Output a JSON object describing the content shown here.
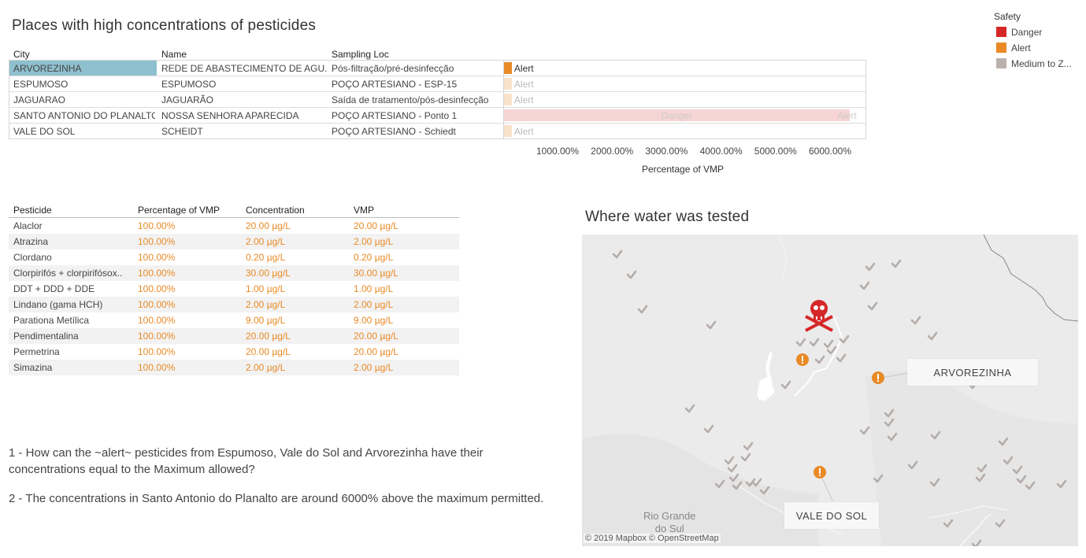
{
  "top": {
    "title": "Places with high concentrations of pesticides",
    "headers": {
      "city": "City",
      "name": "Name",
      "loc": "Sampling Loc"
    },
    "rows": [
      {
        "city": "ARVOREZINHA",
        "name": "REDE DE ABASTECIMENTO DE AGU..",
        "loc": "Pós-filtração/pré-desinfecção",
        "label": "Alert",
        "value": 100,
        "status": "alert",
        "selected": true
      },
      {
        "city": "ESPUMOSO",
        "name": "ESPUMOSO",
        "loc": "POÇO ARTESIANO - ESP-15",
        "label": "Alert",
        "value": 100,
        "status": "alert-faded"
      },
      {
        "city": "JAGUARAO",
        "name": "JAGUARÃO",
        "loc": "Saída de tratamento/pós-desinfecção",
        "label": "Alert",
        "value": 100,
        "status": "alert-faded"
      },
      {
        "city": "SANTO ANTONIO DO PLANALTO",
        "name": "NOSSA SENHORA APARECIDA",
        "loc": "POÇO ARTESIANO - Ponto 1",
        "label": "Danger",
        "label2": "Alert",
        "value": 6300,
        "status": "danger-faded"
      },
      {
        "city": "VALE DO SOL",
        "name": "SCHEIDT",
        "loc": "POÇO ARTESIANO - Schiedt",
        "label": "Alert",
        "value": 100,
        "status": "alert-faded"
      }
    ],
    "axis": {
      "ticks": [
        "1000.00%",
        "2000.00%",
        "3000.00%",
        "4000.00%",
        "5000.00%",
        "6000.00%"
      ],
      "label": "Percentage of VMP"
    }
  },
  "legend": {
    "title": "Safety",
    "items": [
      {
        "label": "Danger",
        "color": "#d62728"
      },
      {
        "label": "Alert",
        "color": "#e98a26"
      },
      {
        "label": "Medium to Z...",
        "color": "#bab0ac"
      }
    ]
  },
  "pest": {
    "headers": {
      "pesticide": "Pesticide",
      "pct": "Percentage of VMP",
      "conc": "Concentration",
      "vmp": "VMP"
    },
    "rows": [
      {
        "pesticide": "Alaclor",
        "pct": "100.00%",
        "conc": "20.00 µg/L",
        "vmp": "20.00 µg/L"
      },
      {
        "pesticide": "Atrazina",
        "pct": "100.00%",
        "conc": "2.00 µg/L",
        "vmp": "2.00 µg/L"
      },
      {
        "pesticide": "Clordano",
        "pct": "100.00%",
        "conc": "0.20 µg/L",
        "vmp": "0.20 µg/L"
      },
      {
        "pesticide": "Clorpirifós + clorpirifósox..",
        "pct": "100.00%",
        "conc": "30.00 µg/L",
        "vmp": "30.00 µg/L"
      },
      {
        "pesticide": "DDT + DDD + DDE",
        "pct": "100.00%",
        "conc": "1.00 µg/L",
        "vmp": "1.00 µg/L"
      },
      {
        "pesticide": "Lindano (gama HCH)",
        "pct": "100.00%",
        "conc": "2.00 µg/L",
        "vmp": "2.00 µg/L"
      },
      {
        "pesticide": "Parationa Metílica",
        "pct": "100.00%",
        "conc": "9.00 µg/L",
        "vmp": "9.00 µg/L"
      },
      {
        "pesticide": "Pendimentalina",
        "pct": "100.00%",
        "conc": "20.00 µg/L",
        "vmp": "20.00 µg/L"
      },
      {
        "pesticide": "Permetrina",
        "pct": "100.00%",
        "conc": "20.00 µg/L",
        "vmp": "20.00 µg/L"
      },
      {
        "pesticide": "Simazina",
        "pct": "100.00%",
        "conc": "2.00 µg/L",
        "vmp": "2.00 µg/L"
      }
    ]
  },
  "questions": {
    "q1": "1 - How can the ~alert~ pesticides from Espumoso, Vale do Sol and Arvorezinha have their concentrations equal to the Maximum allowed?",
    "q2": "2 - The concentrations in Santo Antonio do Planalto are around 6000% above the maximum permitted."
  },
  "map": {
    "title": "Where water was tested",
    "labels": {
      "arvorezinha": "ARVOREZINHA",
      "valedosol": "VALE DO SOL"
    },
    "place": {
      "line1": "Rio Grande",
      "line2": "do Sul"
    },
    "attribution": "© 2019 Mapbox  © OpenStreetMap"
  },
  "colors": {
    "alert": "#e98a26",
    "danger": "#d62728",
    "selected": "#8fc0cf",
    "check": "#b4aca8"
  }
}
